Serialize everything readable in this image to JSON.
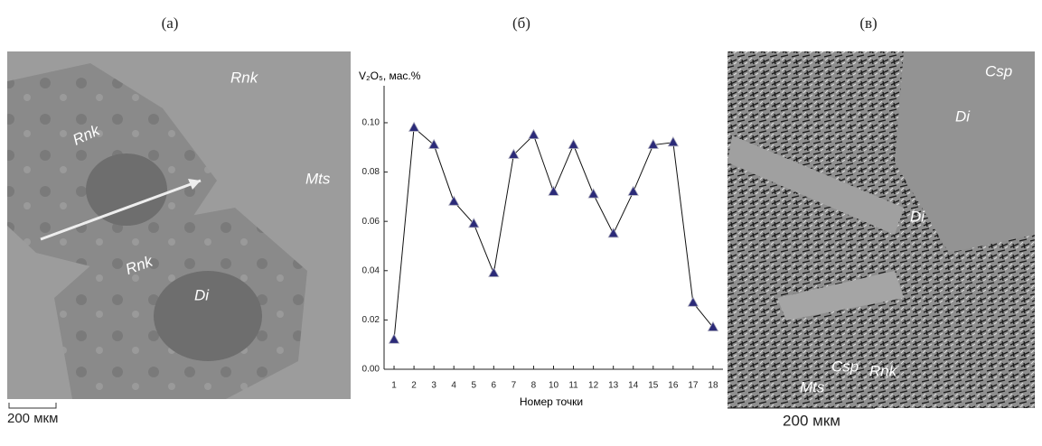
{
  "panels": {
    "labels": [
      "(а)",
      "(б)",
      "(в)"
    ],
    "a": {
      "annotations": [
        "Rnk",
        "Mts",
        "Rnk",
        "Rnk",
        "Di"
      ],
      "scale": "200 мкм"
    },
    "c": {
      "annotations": [
        "Csp",
        "Di",
        "Di",
        "Csp",
        "Rnk",
        "Mts"
      ],
      "scale": "200 мкм"
    }
  },
  "chart_data": {
    "type": "line",
    "y_label": "V₂O₅, мас.%",
    "x_label": "Номер точки",
    "categories": [
      "1",
      "2",
      "3",
      "4",
      "5",
      "6",
      "7",
      "8",
      "10",
      "11",
      "12",
      "13",
      "14",
      "15",
      "16",
      "17",
      "18"
    ],
    "series": [
      {
        "name": "V2O5",
        "color": "#2b2a78",
        "values": [
          0.012,
          0.098,
          0.091,
          0.068,
          0.059,
          0.039,
          0.087,
          0.095,
          0.072,
          0.091,
          0.071,
          0.055,
          0.072,
          0.091,
          0.092,
          0.027,
          0.017
        ]
      }
    ],
    "ylim": [
      0,
      0.115
    ],
    "yticks": [
      {
        "value": 0,
        "label": "0.00"
      },
      {
        "value": 0.02,
        "label": "0.02"
      },
      {
        "value": 0.04,
        "label": "0.04"
      },
      {
        "value": 0.06,
        "label": "0.06"
      },
      {
        "value": 0.08,
        "label": "0.08"
      },
      {
        "value": 0.1,
        "label": "0.10"
      }
    ]
  }
}
